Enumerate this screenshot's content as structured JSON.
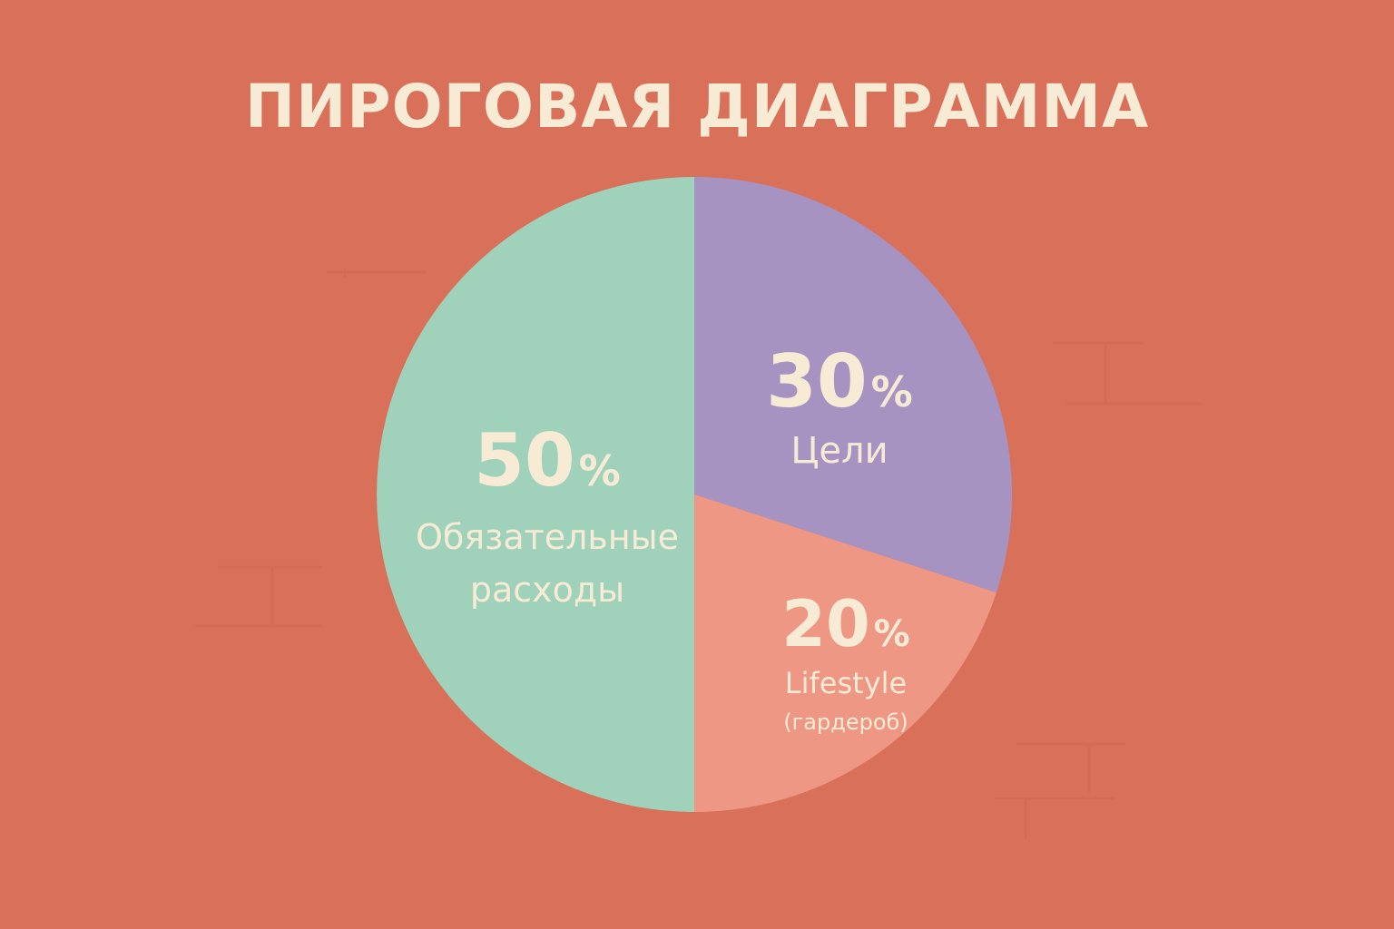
{
  "title": "ПИРОГОВАЯ ДИАГРАММА",
  "colors": {
    "background": "#d9705a",
    "text": "#f8ebd6"
  },
  "chart_data": {
    "type": "pie",
    "title": "ПИРОГОВАЯ ДИАГРАММА",
    "start_angle_deg": 0,
    "direction": "clockwise",
    "slices": [
      {
        "value": 30,
        "percent_label": "30",
        "percent_sign": "%",
        "label_lines": [
          "Цели"
        ],
        "color": "#a693c2"
      },
      {
        "value": 20,
        "percent_label": "20",
        "percent_sign": "%",
        "label_lines": [
          "Lifestyle",
          "(гардероб)"
        ],
        "color": "#ee9784"
      },
      {
        "value": 50,
        "percent_label": "50",
        "percent_sign": "%",
        "label_lines": [
          "Обязательные",
          "расходы"
        ],
        "color": "#a0d2bb"
      }
    ]
  }
}
